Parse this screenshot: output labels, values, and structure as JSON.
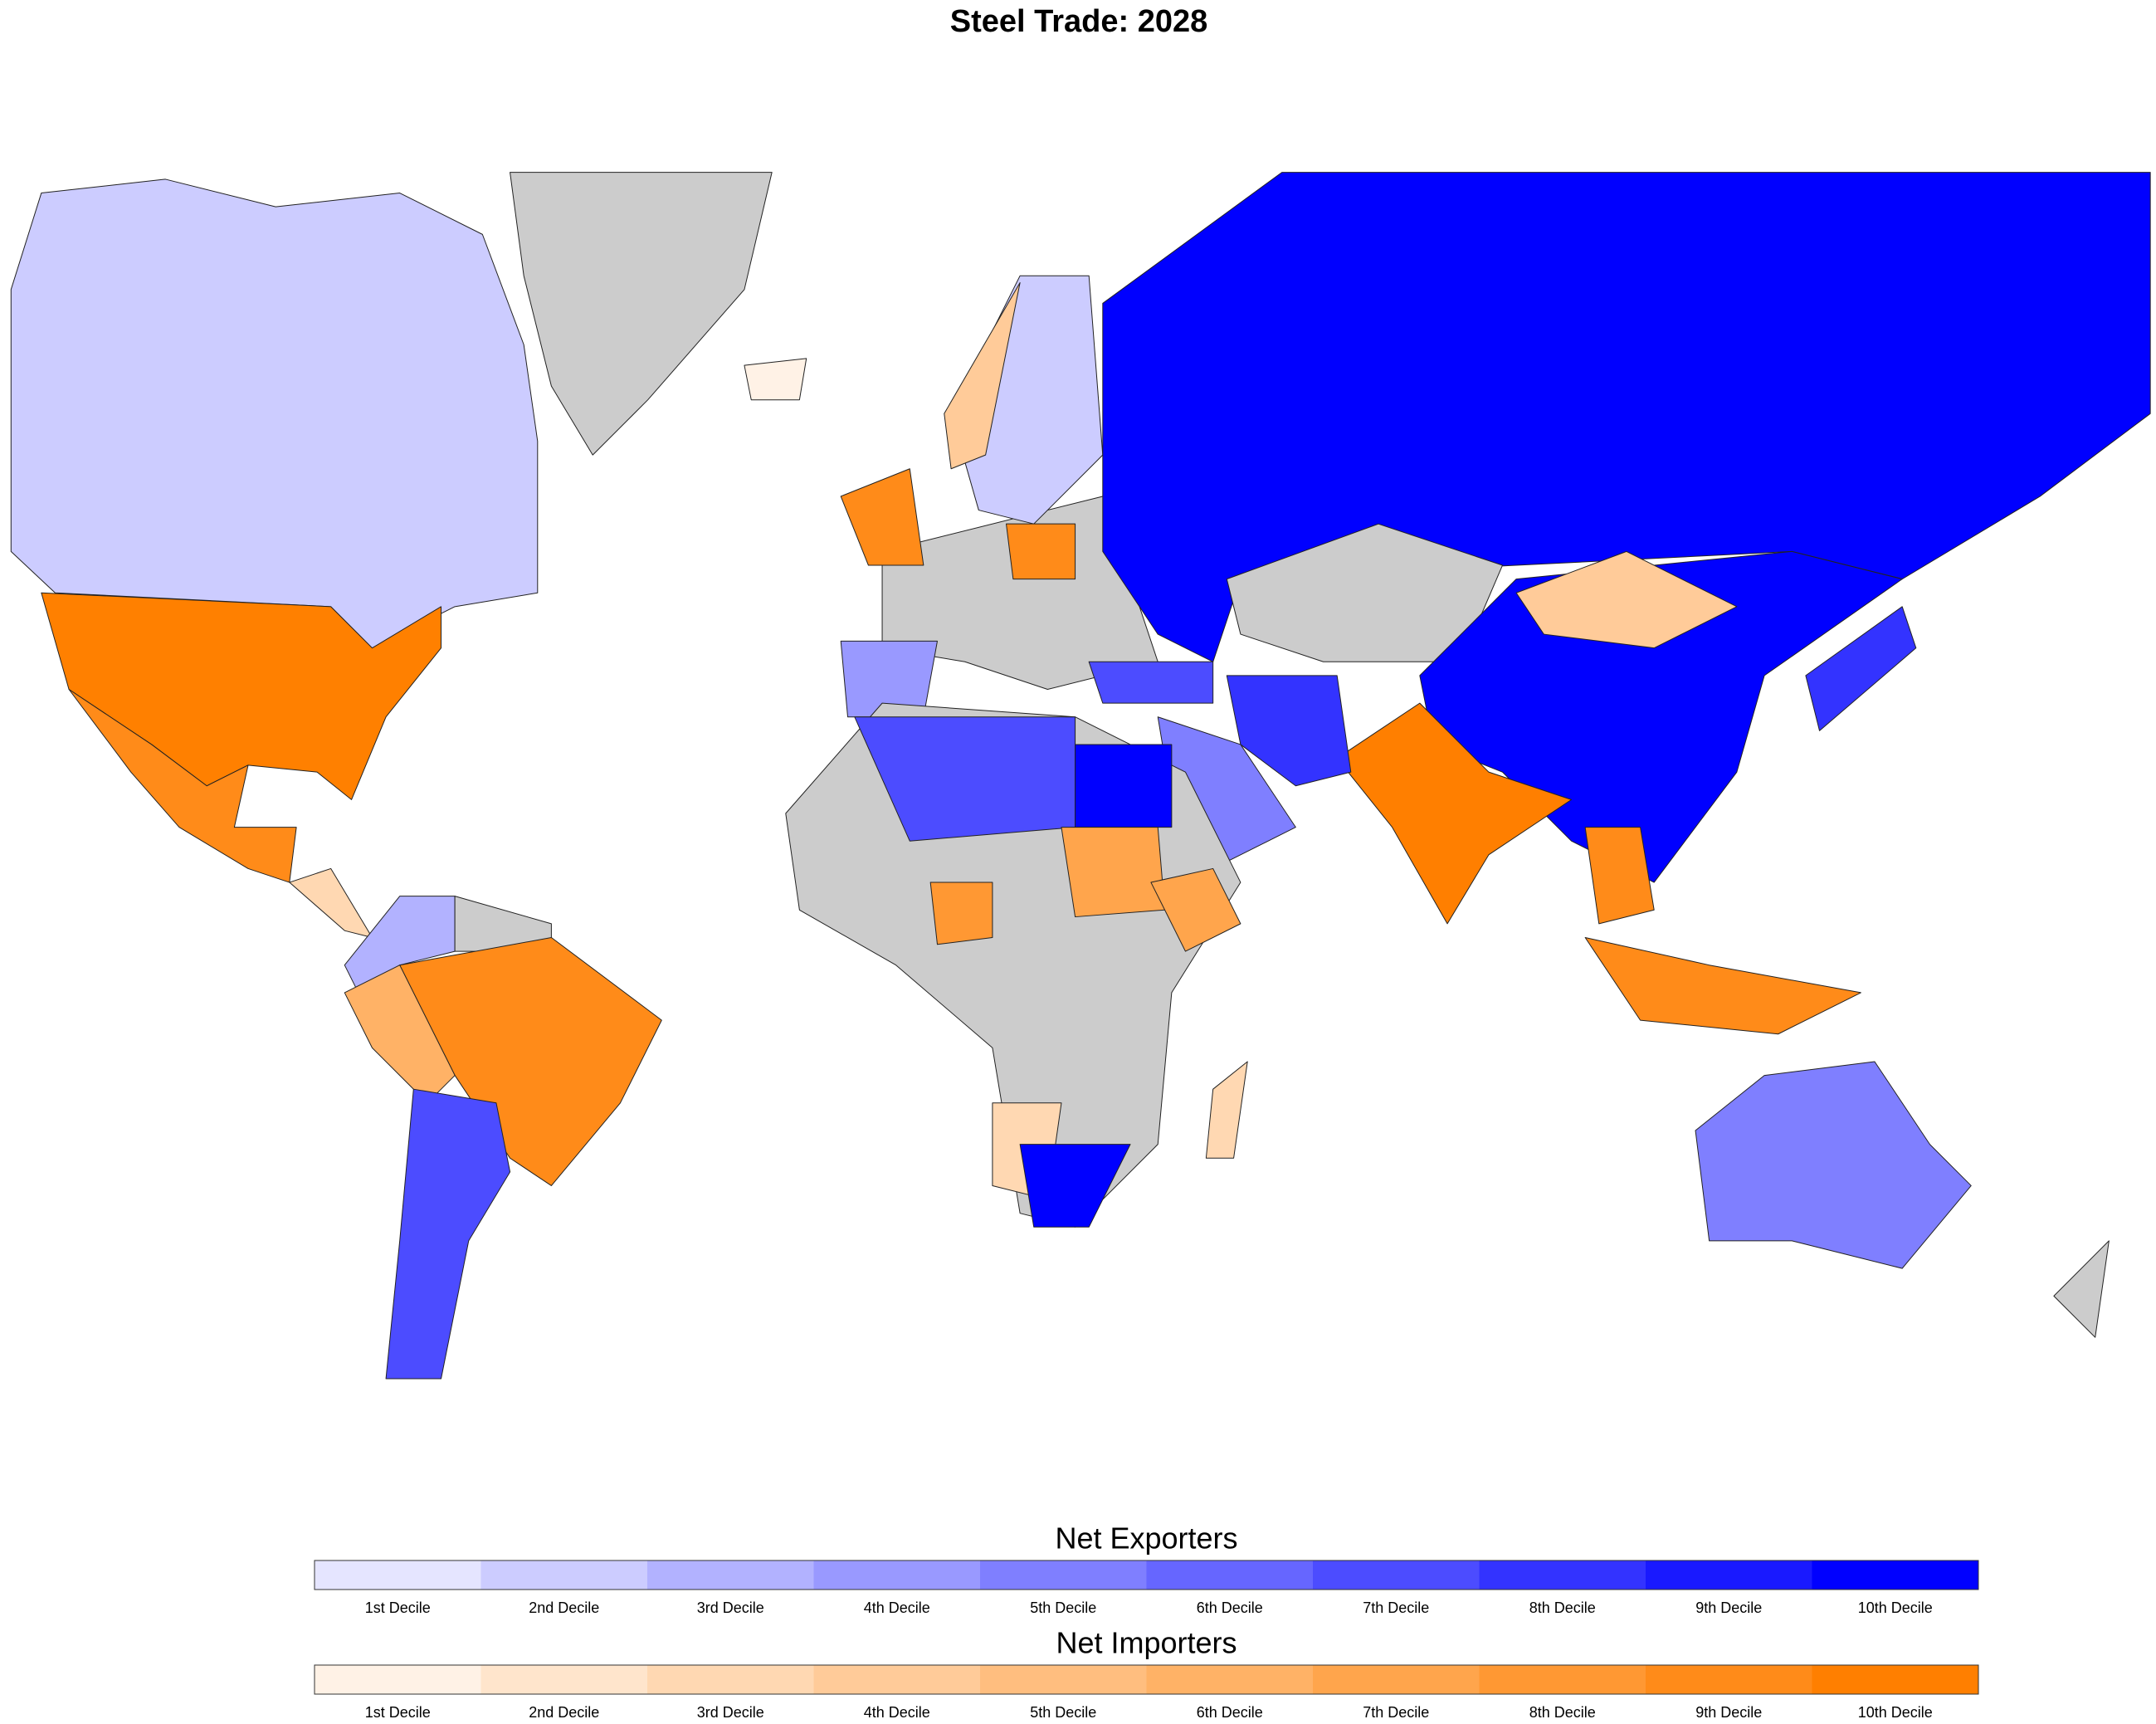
{
  "title": "Steel Trade: 2028",
  "legends": [
    {
      "title": "Net Exporters",
      "labels": [
        "1st Decile",
        "2nd Decile",
        "3rd Decile",
        "4th Decile",
        "5th Decile",
        "6th Decile",
        "7th Decile",
        "8th Decile",
        "9th Decile",
        "10th Decile"
      ],
      "colors": [
        "#e5e5ff",
        "#ccccff",
        "#b2b2ff",
        "#9999ff",
        "#7f7fff",
        "#6666ff",
        "#4c4cff",
        "#3333ff",
        "#1919ff",
        "#0000ff"
      ]
    },
    {
      "title": "Net Importers",
      "labels": [
        "1st Decile",
        "2nd Decile",
        "3rd Decile",
        "4th Decile",
        "5th Decile",
        "6th Decile",
        "7th Decile",
        "8th Decile",
        "9th Decile",
        "10th Decile"
      ],
      "colors": [
        "#fff2e6",
        "#ffe5cc",
        "#ffd8b2",
        "#ffcb99",
        "#ffbe7f",
        "#ffb266",
        "#ffa54c",
        "#ff9833",
        "#ff8b19",
        "#ff7f00"
      ]
    }
  ]
}
